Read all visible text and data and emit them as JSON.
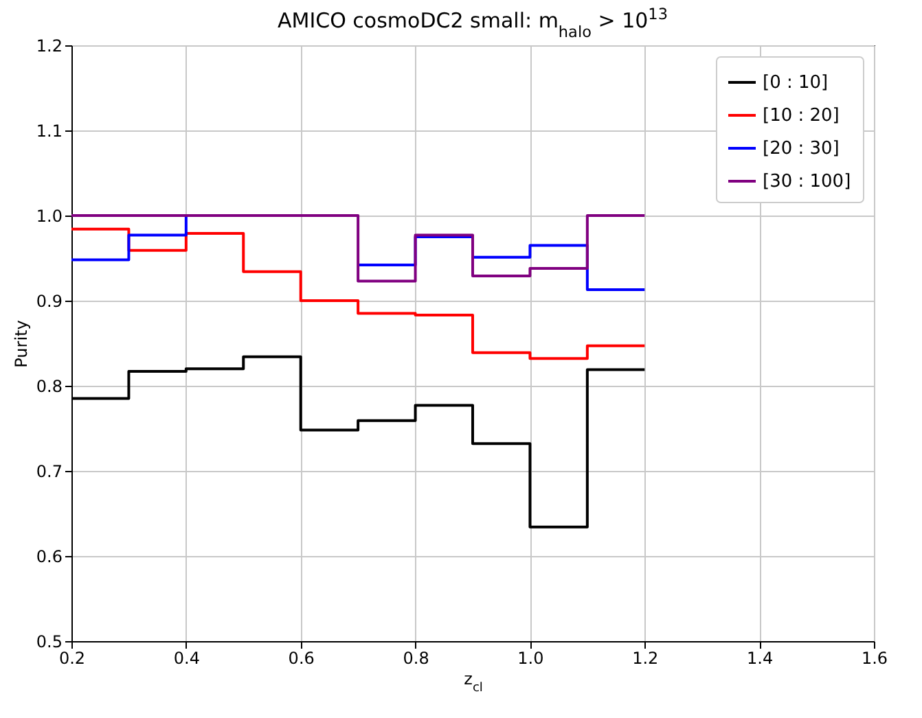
{
  "chart_data": {
    "type": "step",
    "title": "AMICO cosmoDC2 small: m$_{halo}$ > 10$^{13}$",
    "xlabel": "z$_{cl}$",
    "ylabel": "Purity",
    "x": [
      0.2,
      0.3,
      0.4,
      0.5,
      0.6,
      0.7,
      0.8,
      0.9,
      1.0,
      1.1,
      1.2
    ],
    "series": [
      {
        "name": "[0 : 10]",
        "color": "#000000",
        "values": [
          0.785,
          0.817,
          0.82,
          0.834,
          0.748,
          0.759,
          0.777,
          0.732,
          0.634,
          0.819,
          0.819
        ]
      },
      {
        "name": "[10 : 20]",
        "color": "#ff0000",
        "values": [
          0.984,
          0.959,
          0.979,
          0.934,
          0.9,
          0.885,
          0.883,
          0.839,
          0.832,
          0.847,
          0.847
        ]
      },
      {
        "name": "[20 : 30]",
        "color": "#0000ff",
        "values": [
          0.948,
          0.977,
          1.0,
          null,
          null,
          0.942,
          0.975,
          0.951,
          0.965,
          0.913,
          0.913
        ]
      },
      {
        "name": "[30 : 100]",
        "color": "#800080",
        "values": [
          1.0,
          1.0,
          1.0,
          1.0,
          1.0,
          0.923,
          0.977,
          0.929,
          0.938,
          1.0,
          1.0
        ]
      }
    ],
    "xlim": [
      0.2,
      1.6
    ],
    "xticks": [
      0.2,
      0.4,
      0.6,
      0.8,
      {
        "value": 1.0,
        "label": "1.0"
      },
      1.2,
      1.4,
      1.6
    ],
    "ylim": [
      0.5,
      1.2
    ],
    "yticks": [
      0.5,
      0.6,
      0.7,
      0.8,
      0.9,
      {
        "value": 1.0,
        "label": "1.0"
      },
      1.1,
      1.2
    ],
    "grid": true,
    "legend": "top right",
    "line_style": "solid",
    "marker": "none"
  }
}
